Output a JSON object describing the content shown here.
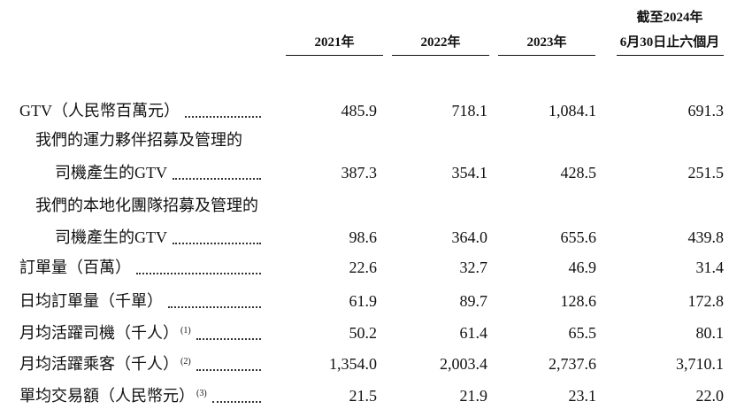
{
  "table": {
    "header": [
      "2021年",
      "2022年",
      "2023年",
      [
        "截至2024年",
        "6月30日止六個月"
      ]
    ],
    "rows": [
      {
        "label": [
          "GTV（人民幣百萬元）"
        ],
        "values": [
          "485.9",
          "718.1",
          "1,084.1",
          "691.3"
        ]
      },
      {
        "label": [
          "我們的運力夥伴招募及管理的",
          "司機產生的GTV"
        ],
        "values": [
          "387.3",
          "354.1",
          "428.5",
          "251.5"
        ]
      },
      {
        "label": [
          "我們的本地化團隊招募及管理的",
          "司機產生的GTV"
        ],
        "values": [
          "98.6",
          "364.0",
          "655.6",
          "439.8"
        ]
      },
      {
        "label": [
          "訂單量（百萬）"
        ],
        "values": [
          "22.6",
          "32.7",
          "46.9",
          "31.4"
        ]
      },
      {
        "label": [
          "日均訂單量（千單）"
        ],
        "values": [
          "61.9",
          "89.7",
          "128.6",
          "172.8"
        ]
      },
      {
        "label": [
          "月均活躍司機（千人）"
        ],
        "note": "(1)",
        "values": [
          "50.2",
          "61.4",
          "65.5",
          "80.1"
        ]
      },
      {
        "label": [
          "月均活躍乘客（千人）"
        ],
        "note": "(2)",
        "values": [
          "1,354.0",
          "2,003.4",
          "2,737.6",
          "3,710.1"
        ]
      },
      {
        "label": [
          "單均交易額（人民幣元）"
        ],
        "note": "(3)",
        "values": [
          "21.5",
          "21.9",
          "23.1",
          "22.0"
        ]
      }
    ]
  }
}
